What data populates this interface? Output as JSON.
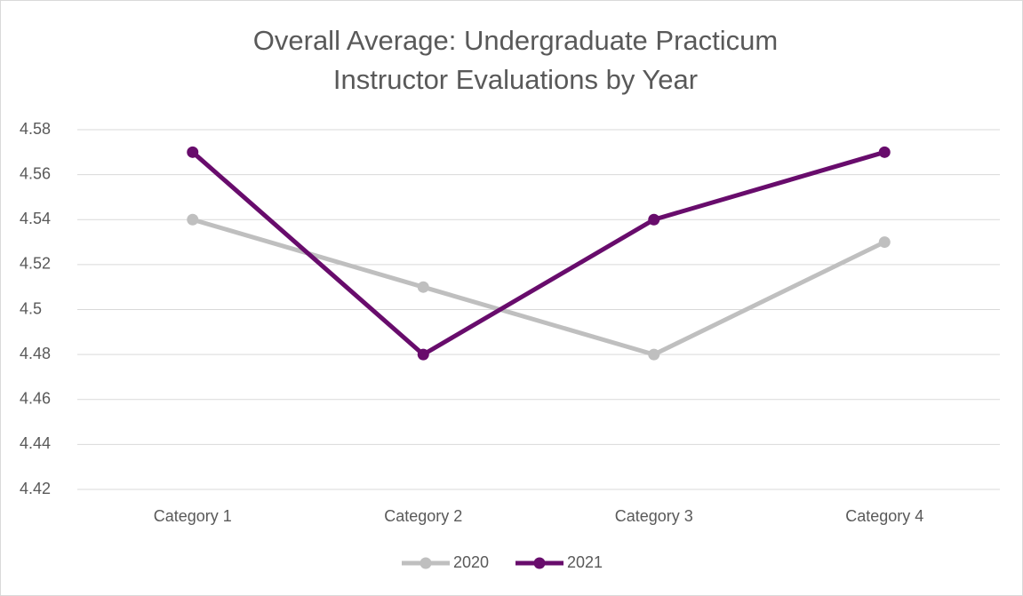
{
  "chart_data": {
    "type": "line",
    "title": [
      "Overall Average: Undergraduate Practicum",
      "Instructor Evaluations by Year"
    ],
    "categories": [
      "Category 1",
      "Category 2",
      "Category 3",
      "Category 4"
    ],
    "series": [
      {
        "name": "2020",
        "color": "#bfbfbf",
        "values": [
          4.54,
          4.51,
          4.48,
          4.53
        ]
      },
      {
        "name": "2021",
        "color": "#680c6c",
        "values": [
          4.57,
          4.48,
          4.54,
          4.57
        ]
      }
    ],
    "ylim": [
      4.42,
      4.58
    ],
    "yticks": [
      4.42,
      4.44,
      4.46,
      4.48,
      4.5,
      4.52,
      4.54,
      4.56,
      4.58
    ],
    "grid": true,
    "legend": "bottom"
  }
}
